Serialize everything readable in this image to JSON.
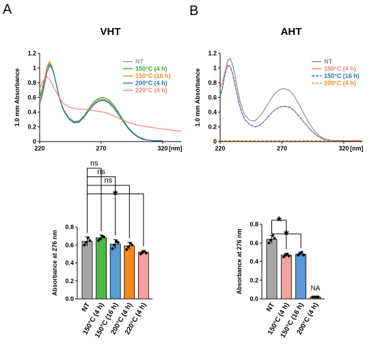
{
  "panels": [
    "A",
    "B"
  ],
  "chart_data": [
    {
      "id": "vht-spectra",
      "type": "line",
      "title": "VHT",
      "ylabel": "1.0 mm Absorbance",
      "xlabel": "[nm]",
      "xlim": [
        220,
        335
      ],
      "ylim": [
        0,
        1.2
      ],
      "xticks": [
        220,
        270,
        320
      ],
      "yticks": [
        0,
        0.2,
        0.4,
        0.6,
        0.8,
        1,
        1.2
      ],
      "legend_position": "top-right",
      "series": [
        {
          "name": "NT",
          "color": "#9e9e9e",
          "dash": "",
          "x": [
            220,
            222,
            224,
            226,
            228,
            230,
            232,
            234,
            236,
            238,
            240,
            244,
            248,
            252,
            256,
            260,
            264,
            268,
            272,
            276,
            280,
            284,
            288,
            292,
            296,
            300,
            304,
            308,
            312,
            316,
            320
          ],
          "y": [
            0.58,
            0.68,
            0.8,
            0.96,
            1.04,
            1.02,
            0.9,
            0.74,
            0.6,
            0.48,
            0.4,
            0.3,
            0.25,
            0.26,
            0.33,
            0.43,
            0.52,
            0.57,
            0.58,
            0.55,
            0.48,
            0.38,
            0.27,
            0.18,
            0.11,
            0.06,
            0.03,
            0.02,
            0.01,
            0.01,
            0.01
          ]
        },
        {
          "name": "150°C (4 h)",
          "color": "#3aa935",
          "dash": "",
          "x": [
            220,
            222,
            224,
            226,
            228,
            230,
            232,
            234,
            236,
            238,
            240,
            244,
            248,
            252,
            256,
            260,
            264,
            268,
            272,
            276,
            280,
            284,
            288,
            292,
            296,
            300,
            304,
            308,
            312,
            316,
            320
          ],
          "y": [
            0.6,
            0.72,
            0.86,
            1.0,
            1.06,
            1.02,
            0.9,
            0.75,
            0.61,
            0.5,
            0.42,
            0.32,
            0.27,
            0.28,
            0.35,
            0.45,
            0.54,
            0.59,
            0.6,
            0.57,
            0.5,
            0.4,
            0.29,
            0.19,
            0.12,
            0.07,
            0.04,
            0.02,
            0.01,
            0.01,
            0.01
          ]
        },
        {
          "name": "150°C (16 h)",
          "color": "#f58a1f",
          "dash": "",
          "x": [
            220,
            222,
            224,
            226,
            228,
            230,
            232,
            234,
            236,
            238,
            240,
            244,
            248,
            252,
            256,
            260,
            264,
            268,
            272,
            276,
            280,
            284,
            288,
            292,
            296,
            300,
            304,
            308,
            312,
            316,
            320
          ],
          "y": [
            0.55,
            0.66,
            0.84,
            1.02,
            1.09,
            1.03,
            0.9,
            0.74,
            0.6,
            0.49,
            0.41,
            0.31,
            0.26,
            0.27,
            0.33,
            0.43,
            0.51,
            0.56,
            0.57,
            0.54,
            0.47,
            0.37,
            0.27,
            0.18,
            0.11,
            0.06,
            0.03,
            0.02,
            0.01,
            0.01,
            0.01
          ]
        },
        {
          "name": "200°C (4 h)",
          "color": "#1f73c2",
          "dash": "",
          "x": [
            220,
            222,
            224,
            226,
            228,
            230,
            232,
            234,
            236,
            238,
            240,
            244,
            248,
            252,
            256,
            260,
            264,
            268,
            272,
            276,
            280,
            284,
            288,
            292,
            296,
            300,
            304,
            308,
            312,
            316,
            320
          ],
          "y": [
            0.52,
            0.62,
            0.78,
            0.95,
            1.03,
            1.0,
            0.89,
            0.74,
            0.6,
            0.49,
            0.41,
            0.31,
            0.26,
            0.27,
            0.33,
            0.42,
            0.5,
            0.55,
            0.56,
            0.53,
            0.46,
            0.37,
            0.27,
            0.18,
            0.11,
            0.06,
            0.03,
            0.02,
            0.01,
            0.01,
            0.01
          ]
        },
        {
          "name": "220°C (4 h)",
          "color": "#f07f7f",
          "dash": "",
          "x": [
            220,
            222,
            224,
            226,
            228,
            230,
            232,
            234,
            236,
            238,
            240,
            244,
            248,
            252,
            256,
            260,
            264,
            268,
            272,
            276,
            280,
            284,
            288,
            292,
            296,
            300,
            304,
            308,
            312,
            316,
            320,
            325,
            330,
            335
          ],
          "y": [
            0.72,
            0.8,
            0.86,
            0.88,
            0.85,
            0.79,
            0.72,
            0.66,
            0.6,
            0.55,
            0.51,
            0.47,
            0.45,
            0.44,
            0.44,
            0.43,
            0.42,
            0.41,
            0.4,
            0.38,
            0.35,
            0.32,
            0.29,
            0.26,
            0.24,
            0.22,
            0.21,
            0.2,
            0.19,
            0.18,
            0.17,
            0.16,
            0.15,
            0.14
          ]
        }
      ]
    },
    {
      "id": "aht-spectra",
      "type": "line",
      "title": "AHT",
      "ylabel": "1.0 mm Absorbance",
      "xlabel": "[nm]",
      "xlim": [
        220,
        335
      ],
      "ylim": [
        0,
        1.2
      ],
      "xticks": [
        220,
        270,
        320
      ],
      "yticks": [
        0,
        0.2,
        0.4,
        0.6,
        0.8,
        1,
        1.2
      ],
      "legend_position": "top-right",
      "series": [
        {
          "name": "NT",
          "color": "#8a8a8a",
          "dash": "",
          "x": [
            220,
            222,
            224,
            226,
            228,
            230,
            232,
            234,
            236,
            238,
            240,
            244,
            248,
            252,
            256,
            260,
            264,
            268,
            272,
            276,
            280,
            284,
            288,
            292,
            296,
            300,
            304,
            308,
            312,
            316,
            320,
            330,
            335
          ],
          "y": [
            0.62,
            0.74,
            0.93,
            1.1,
            1.13,
            1.05,
            0.9,
            0.72,
            0.56,
            0.44,
            0.36,
            0.29,
            0.28,
            0.34,
            0.44,
            0.55,
            0.65,
            0.71,
            0.72,
            0.7,
            0.62,
            0.5,
            0.37,
            0.25,
            0.15,
            0.08,
            0.04,
            0.02,
            0.01,
            0.01,
            0.01,
            0.01,
            0.01
          ]
        },
        {
          "name": "150°C (4 h)",
          "color": "#f07f7f",
          "dash": "",
          "x": [
            220,
            222,
            224,
            226,
            228,
            230,
            232,
            234,
            236,
            238,
            240,
            244,
            248,
            252,
            256,
            260,
            264,
            268,
            272,
            276,
            280,
            284,
            288,
            292,
            296,
            300,
            304,
            308,
            312,
            316,
            320,
            330,
            335
          ],
          "y": [
            0.72,
            0.82,
            0.96,
            1.04,
            1.02,
            0.93,
            0.78,
            0.62,
            0.48,
            0.37,
            0.3,
            0.23,
            0.2,
            0.22,
            0.28,
            0.36,
            0.43,
            0.47,
            0.48,
            0.47,
            0.42,
            0.34,
            0.26,
            0.18,
            0.11,
            0.06,
            0.03,
            0.02,
            0.01,
            0.01,
            0.01,
            0.01,
            0.01
          ]
        },
        {
          "name": "150°C (16 h)",
          "color": "#2a6fbd",
          "dash": "4,2",
          "x": [
            220,
            222,
            224,
            226,
            228,
            230,
            232,
            234,
            236,
            238,
            240,
            244,
            248,
            252,
            256,
            260,
            264,
            268,
            272,
            276,
            280,
            284,
            288,
            292,
            296,
            300,
            304,
            308,
            312,
            316,
            320,
            330,
            335
          ],
          "y": [
            0.6,
            0.74,
            0.92,
            1.03,
            1.02,
            0.93,
            0.78,
            0.62,
            0.48,
            0.37,
            0.3,
            0.23,
            0.2,
            0.22,
            0.28,
            0.36,
            0.43,
            0.47,
            0.48,
            0.47,
            0.42,
            0.34,
            0.26,
            0.18,
            0.11,
            0.06,
            0.03,
            0.02,
            0.01,
            0.01,
            0.01,
            0.01,
            0.01
          ]
        },
        {
          "name": "200°C (4 h)",
          "color": "#f58a1f",
          "dash": "4,2",
          "x": [
            220,
            335
          ],
          "y": [
            0.01,
            0.01
          ]
        }
      ]
    },
    {
      "id": "vht-bars",
      "type": "bar",
      "ylabel": "Absorbance at 276 nm",
      "ylim": [
        0,
        0.8
      ],
      "yticks": [
        0.0,
        0.2,
        0.4,
        0.6,
        0.8
      ],
      "categories": [
        "NT",
        "150°C (4 h)",
        "150°C (16 h)",
        "200°C (4 h)",
        "220°C (4 h)"
      ],
      "values": [
        0.64,
        0.68,
        0.61,
        0.59,
        0.52
      ],
      "errors": [
        0.05,
        0.03,
        0.05,
        0.04,
        0.02
      ],
      "colors": [
        "#a6a6a6",
        "#4bb848",
        "#5b9bd5",
        "#f58a1f",
        "#f4a09b"
      ],
      "points": [
        [
          0.6,
          0.63,
          0.68,
          0.65
        ],
        [
          0.65,
          0.67,
          0.7,
          0.69
        ],
        [
          0.56,
          0.6,
          0.64,
          0.63
        ],
        [
          0.55,
          0.58,
          0.62,
          0.6
        ],
        [
          0.5,
          0.52,
          0.53,
          0.51
        ]
      ],
      "comparisons": [
        {
          "from": 0,
          "to": 1,
          "label": "ns"
        },
        {
          "from": 0,
          "to": 2,
          "label": "ns"
        },
        {
          "from": 0,
          "to": 3,
          "label": "ns"
        },
        {
          "from": 0,
          "to": 4,
          "label": "*"
        }
      ]
    },
    {
      "id": "aht-bars",
      "type": "bar",
      "ylabel": "Absorbance at 276 nm",
      "ylim": [
        0,
        0.8
      ],
      "yticks": [
        0.0,
        0.2,
        0.4,
        0.6,
        0.8
      ],
      "categories": [
        "NT",
        "150°C (4 h)",
        "150°C (16 h)",
        "200°C (4 h)"
      ],
      "values": [
        0.64,
        0.47,
        0.48,
        0.02
      ],
      "errors": [
        0.04,
        0.02,
        0.02,
        0.0
      ],
      "colors": [
        "#a6a6a6",
        "#f4a09b",
        "#5b9bd5",
        "#f58a1f"
      ],
      "points": [
        [
          0.6,
          0.63,
          0.68,
          0.65
        ],
        [
          0.45,
          0.47,
          0.48,
          0.46
        ],
        [
          0.47,
          0.49,
          0.5,
          0.47
        ],
        [
          0.02,
          0.02,
          0.02,
          0.02
        ]
      ],
      "value_annotations": [
        {
          "index": 3,
          "text": "NA"
        }
      ],
      "comparisons": [
        {
          "from": 0,
          "to": 1,
          "label": "*"
        },
        {
          "from": 0,
          "to": 2,
          "label": "*"
        }
      ]
    }
  ]
}
